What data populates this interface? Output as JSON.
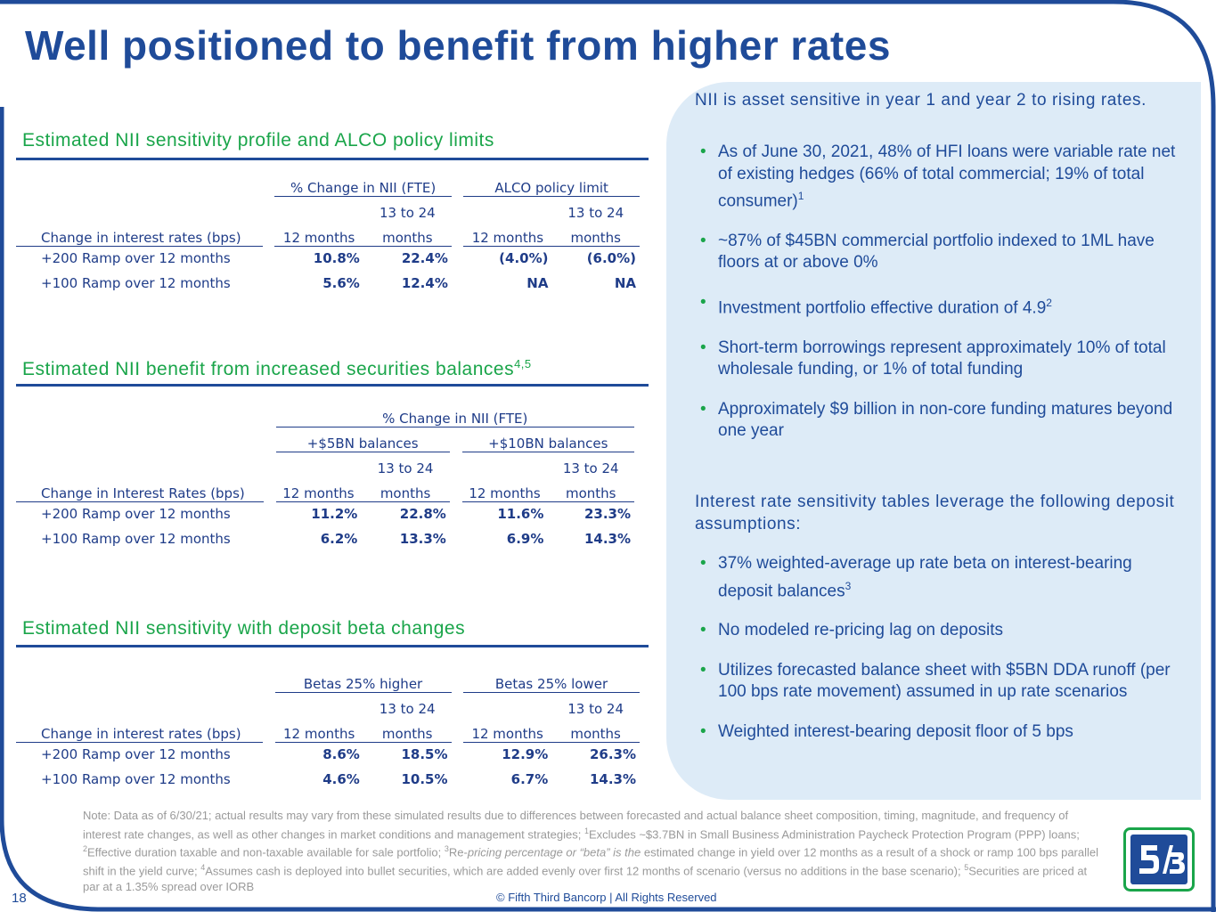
{
  "title": "Well positioned to benefit from higher rates",
  "section1": {
    "title": "Estimated NII sensitivity profile and ALCO policy limits",
    "group1": "% Change in NII (FTE)",
    "group2": "ALCO policy limit",
    "col_label": "Change in interest rates (bps)",
    "sub_a_top": "",
    "sub_a": "12 months",
    "sub_b_top": "13 to 24",
    "sub_b": "months",
    "rows": [
      {
        "label": "+200 Ramp over 12 months",
        "v1": "10.8%",
        "v2": "22.4%",
        "v3": "(4.0%)",
        "v4": "(6.0%)"
      },
      {
        "label": "+100 Ramp over 12 months",
        "v1": "5.6%",
        "v2": "12.4%",
        "v3": "NA",
        "v4": "NA"
      }
    ]
  },
  "section2": {
    "title": "Estimated NII benefit from increased securities balances",
    "title_sup": "4,5",
    "supergroup": "% Change in NII (FTE)",
    "group1": "+$5BN balances",
    "group2": "+$10BN balances",
    "col_label": "Change in Interest Rates (bps)",
    "sub_a": "12 months",
    "sub_b_top": "13 to 24",
    "sub_b": "months",
    "rows": [
      {
        "label": "+200 Ramp over 12 months",
        "v1": "11.2%",
        "v2": "22.8%",
        "v3": "11.6%",
        "v4": "23.3%"
      },
      {
        "label": "+100 Ramp over 12 months",
        "v1": "6.2%",
        "v2": "13.3%",
        "v3": "6.9%",
        "v4": "14.3%"
      }
    ]
  },
  "section3": {
    "title": "Estimated NII sensitivity with deposit beta changes",
    "group1": "Betas 25% higher",
    "group2": "Betas 25% lower",
    "col_label": "Change in interest rates (bps)",
    "sub_a": "12 months",
    "sub_b_top": "13 to 24",
    "sub_b": "months",
    "rows": [
      {
        "label": "+200 Ramp over 12 months",
        "v1": "8.6%",
        "v2": "18.5%",
        "v3": "12.9%",
        "v4": "26.3%"
      },
      {
        "label": "+100 Ramp over 12 months",
        "v1": "4.6%",
        "v2": "10.5%",
        "v3": "6.7%",
        "v4": "14.3%"
      }
    ]
  },
  "panel": {
    "heading1": "NII is asset sensitive in year 1 and year 2 to rising rates.",
    "bullets1": [
      {
        "text": "As of June 30, 2021, 48% of HFI loans were variable rate net of existing hedges (66% of total commercial; 19% of total consumer)",
        "sup": "1"
      },
      {
        "text": "~87% of $45BN commercial portfolio indexed to 1ML have floors at or above 0%",
        "sup": ""
      },
      {
        "text": "Investment portfolio effective duration of 4.9",
        "sup": "2"
      },
      {
        "text": "Short-term borrowings represent approximately 10% of total wholesale funding, or 1% of total funding",
        "sup": ""
      },
      {
        "text": "Approximately $9 billion in non-core funding matures beyond one year",
        "sup": ""
      }
    ],
    "heading2": "Interest rate sensitivity tables leverage the following deposit assumptions:",
    "bullets2": [
      {
        "text": "37% weighted-average up rate beta on interest-bearing deposit balances",
        "sup": "3"
      },
      {
        "text": "No modeled re-pricing lag on deposits",
        "sup": ""
      },
      {
        "text": "Utilizes forecasted balance sheet with $5BN DDA runoff (per 100 bps rate movement) assumed in up rate scenarios",
        "sup": ""
      },
      {
        "text": "Weighted interest-bearing deposit floor of 5 bps",
        "sup": ""
      }
    ]
  },
  "footnote": {
    "p1": "Note: Data as of 6/30/21; actual results may vary from these simulated results due to differences between forecasted and actual balance sheet composition, timing, magnitude, and frequency of interest rate changes, as well as other changes in market conditions and management strategies; ",
    "s1": "1",
    "p2": "Excludes ~$3.7BN in Small Business Administration Paycheck Protection Program (PPP) loans; ",
    "s2": "2",
    "p3": "Effective duration taxable and non-taxable available for sale portfolio; ",
    "s3": "3",
    "p4a": "Re-",
    "p4b": "pricing percentage or “beta” is the",
    "p4c": " estimated change in yield over 12 months as a result of a shock or ramp 100 bps parallel shift in the yield curve; ",
    "s4": "4",
    "p5": "Assumes cash is deployed into bullet securities, which are added evenly over first 12 months of scenario (versus no additions in the base scenario); ",
    "s5": "5",
    "p6": "Securities are priced at par at a 1.35% spread over IORB"
  },
  "page_number": "18",
  "copyright": "© Fifth Third Bancorp | All Rights Reserved",
  "colors": {
    "navy": "#1f4b99",
    "green": "#1aa54a",
    "panel": "#ddebf7",
    "footnote": "#9a9a9a"
  },
  "logo": {
    "icon": "fifth-third-logo-icon",
    "text": "5/3"
  }
}
